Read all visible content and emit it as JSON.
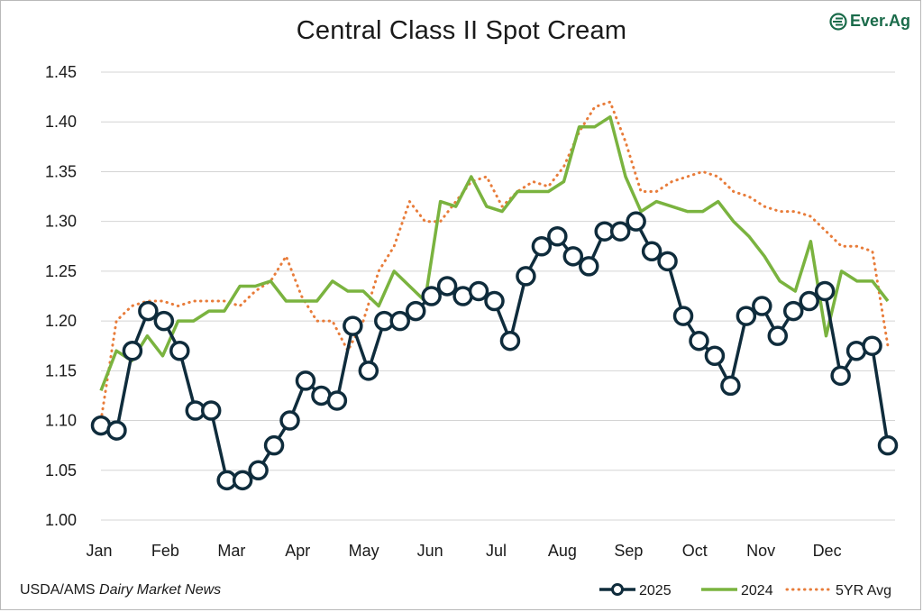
{
  "title": "Central Class II Spot Cream",
  "logo_text": "Ever.Ag",
  "source_prefix": "USDA/AMS ",
  "source_italic": "Dairy Market News",
  "colors": {
    "series_2025": "#0f2c3c",
    "series_2024": "#7ab33f",
    "series_5yr": "#e87c3a",
    "grid": "#d4d4d4",
    "brand": "#1a6b4a"
  },
  "chart_data": {
    "type": "line",
    "title": "Central Class II Spot Cream",
    "xlabel": "",
    "ylabel": "",
    "ylim": [
      1.0,
      1.45
    ],
    "yticks": [
      "1.00",
      "1.05",
      "1.10",
      "1.15",
      "1.20",
      "1.25",
      "1.30",
      "1.35",
      "1.40",
      "1.45"
    ],
    "months": [
      "Jan",
      "Feb",
      "Mar",
      "Apr",
      "May",
      "Jun",
      "Jul",
      "Aug",
      "Sep",
      "Oct",
      "Nov",
      "Dec"
    ],
    "grid": "horizontal",
    "legend_position": "bottom-right",
    "series": [
      {
        "name": "2025",
        "style": "line-with-circle-markers",
        "values": [
          1.095,
          1.09,
          1.17,
          1.21,
          1.2,
          1.17,
          1.11,
          1.11,
          1.04,
          1.04,
          1.05,
          1.075,
          1.1,
          1.14,
          1.125,
          1.12,
          1.195,
          1.15,
          1.2,
          1.2,
          1.21,
          1.225,
          1.235,
          1.225,
          1.23,
          1.22,
          1.18,
          1.245,
          1.275,
          1.285,
          1.265,
          1.255,
          1.29,
          1.29,
          1.3,
          1.27,
          1.26,
          1.205,
          1.18,
          1.165,
          1.135,
          1.205,
          1.215,
          1.185,
          1.21,
          1.22,
          1.23,
          1.145,
          1.17,
          1.175,
          1.075
        ]
      },
      {
        "name": "2024",
        "style": "solid",
        "values": [
          1.13,
          1.17,
          1.16,
          1.185,
          1.165,
          1.2,
          1.2,
          1.21,
          1.21,
          1.235,
          1.235,
          1.24,
          1.22,
          1.22,
          1.22,
          1.24,
          1.23,
          1.23,
          1.215,
          1.25,
          1.235,
          1.22,
          1.32,
          1.315,
          1.345,
          1.315,
          1.31,
          1.33,
          1.33,
          1.33,
          1.34,
          1.395,
          1.395,
          1.405,
          1.345,
          1.31,
          1.32,
          1.315,
          1.31,
          1.31,
          1.32,
          1.3,
          1.285,
          1.265,
          1.24,
          1.23,
          1.28,
          1.185,
          1.25,
          1.24,
          1.24,
          1.22
        ]
      },
      {
        "name": "5YR Avg",
        "style": "dotted",
        "values": [
          1.1,
          1.2,
          1.215,
          1.22,
          1.22,
          1.215,
          1.22,
          1.22,
          1.22,
          1.215,
          1.23,
          1.24,
          1.265,
          1.225,
          1.2,
          1.2,
          1.17,
          1.2,
          1.25,
          1.275,
          1.32,
          1.3,
          1.3,
          1.32,
          1.34,
          1.345,
          1.315,
          1.33,
          1.34,
          1.335,
          1.355,
          1.39,
          1.415,
          1.42,
          1.38,
          1.33,
          1.33,
          1.34,
          1.345,
          1.35,
          1.345,
          1.33,
          1.325,
          1.315,
          1.31,
          1.31,
          1.305,
          1.29,
          1.275,
          1.275,
          1.27,
          1.175
        ]
      }
    ]
  }
}
